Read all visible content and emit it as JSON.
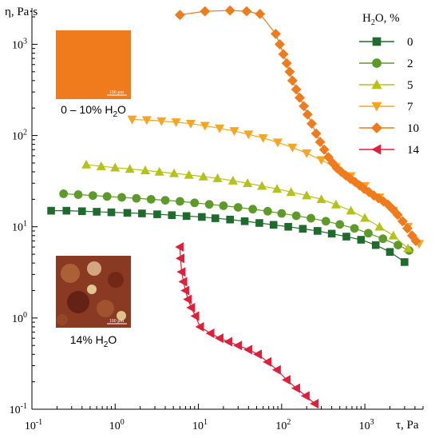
{
  "chart_data": {
    "type": "scatter",
    "x_scale": "log",
    "y_scale": "log",
    "xlim": [
      0.1,
      5000
    ],
    "ylim": [
      0.1,
      2500
    ],
    "x_ticks": [
      {
        "value": 0.1,
        "base": "10",
        "exp": "-1"
      },
      {
        "value": 1,
        "base": "10",
        "exp": "0"
      },
      {
        "value": 10,
        "base": "10",
        "exp": "1"
      },
      {
        "value": 100,
        "base": "10",
        "exp": "2"
      },
      {
        "value": 1000,
        "base": "10",
        "exp": "3"
      }
    ],
    "y_ticks": [
      {
        "value": 0.1,
        "base": "10",
        "exp": "-1"
      },
      {
        "value": 1,
        "base": "10",
        "exp": "0"
      },
      {
        "value": 10,
        "base": "10",
        "exp": "1"
      },
      {
        "value": 100,
        "base": "10",
        "exp": "2"
      },
      {
        "value": 1000,
        "base": "10",
        "exp": "3"
      }
    ],
    "xlabel": "τ, Pa",
    "ylabel": "η, Pa·s",
    "legend_title": "H2O, %",
    "legend_placement": "top-right",
    "grid": false,
    "series": [
      {
        "name": "0",
        "marker": "square",
        "color": "#1f6b2e",
        "x": [
          0.17,
          0.26,
          0.4,
          0.6,
          0.9,
          1.4,
          2.1,
          3.2,
          4.8,
          7.2,
          11,
          16,
          24,
          36,
          54,
          80,
          120,
          180,
          270,
          400,
          600,
          900,
          1350,
          2000,
          3000
        ],
        "y": [
          15.0,
          15.0,
          14.8,
          14.6,
          14.4,
          14.2,
          14.0,
          13.7,
          13.4,
          13.1,
          12.8,
          12.4,
          12.0,
          11.5,
          11.0,
          10.5,
          10.0,
          9.5,
          9.0,
          8.4,
          7.8,
          7.2,
          6.3,
          5.3,
          4.1
        ]
      },
      {
        "name": "2",
        "marker": "circle",
        "color": "#5e9a2a",
        "x": [
          0.24,
          0.36,
          0.54,
          0.8,
          1.2,
          1.8,
          2.7,
          4.0,
          6.0,
          9.0,
          13.5,
          20,
          30,
          45,
          68,
          100,
          150,
          225,
          340,
          500,
          750,
          1100,
          1650,
          2500,
          3400
        ],
        "y": [
          23,
          22.5,
          22,
          21.5,
          21,
          20.5,
          20,
          19.5,
          19,
          18.3,
          17.6,
          17,
          16.3,
          15.6,
          14.8,
          14.0,
          13.2,
          12.4,
          11.5,
          10.6,
          9.6,
          8.5,
          7.4,
          6.3,
          5.5
        ]
      },
      {
        "name": "5",
        "marker": "triangle-up",
        "color": "#b5c21a",
        "x": [
          0.45,
          0.68,
          1.0,
          1.5,
          2.3,
          3.4,
          5.1,
          7.7,
          11.5,
          17,
          26,
          39,
          58,
          88,
          130,
          200,
          300,
          450,
          680,
          1000,
          1500,
          2200,
          3300
        ],
        "y": [
          48,
          46,
          44.5,
          43,
          41.5,
          40,
          38.5,
          37,
          35.5,
          34,
          32,
          30,
          28,
          26,
          24,
          22,
          20,
          17.5,
          15,
          12.5,
          10,
          8,
          5.8
        ]
      },
      {
        "name": "7",
        "marker": "triangle-down",
        "color": "#f5a623",
        "x": [
          1.6,
          2.4,
          3.6,
          5.4,
          8.1,
          12,
          18,
          27,
          40,
          60,
          90,
          135,
          200,
          300,
          450,
          680,
          1000,
          1500,
          2200,
          3300,
          4500
        ],
        "y": [
          150,
          148,
          144,
          140,
          135,
          128,
          120,
          112,
          103,
          94,
          84,
          74,
          64,
          54,
          45,
          36,
          28,
          21,
          15,
          10,
          6.5
        ]
      },
      {
        "name": "10",
        "marker": "diamond",
        "color": "#f07b1c",
        "x": [
          6,
          12,
          24,
          38,
          55,
          85,
          95,
          105,
          115,
          125,
          135,
          150,
          165,
          185,
          205,
          230,
          260,
          290,
          325,
          365,
          410,
          460,
          520,
          590,
          670,
          760,
          860,
          980,
          1120,
          1280,
          1460,
          1670,
          1900,
          2170,
          2480,
          2840,
          3240,
          3700,
          4100
        ],
        "y": [
          2100,
          2300,
          2350,
          2300,
          2150,
          1300,
          1000,
          780,
          620,
          500,
          400,
          320,
          260,
          210,
          170,
          135,
          105,
          85,
          70,
          58,
          50,
          44,
          40,
          36.5,
          33.5,
          31,
          28.5,
          26,
          24,
          22,
          20.5,
          19,
          17.5,
          15.5,
          13.5,
          11.5,
          9.6,
          8.0,
          7.0
        ]
      },
      {
        "name": "14",
        "marker": "triangle-left",
        "color": "#e21f3a",
        "x": [
          6,
          6.1,
          6.3,
          6.6,
          7,
          7.5,
          8.2,
          9.2,
          10.5,
          14,
          18,
          23,
          30,
          40,
          52,
          68,
          88,
          115,
          150,
          195,
          250
        ],
        "y": [
          6.0,
          4.5,
          3.2,
          2.5,
          2.0,
          1.6,
          1.3,
          1.05,
          0.8,
          0.68,
          0.6,
          0.55,
          0.5,
          0.45,
          0.4,
          0.33,
          0.27,
          0.21,
          0.17,
          0.14,
          0.115
        ]
      }
    ]
  },
  "insets": [
    {
      "id": "inset-top",
      "label_pre": "0 – 10% H",
      "label_sub": "2",
      "label_post": "O",
      "scale_bar": "100 μm",
      "fill": "#f07b1c"
    },
    {
      "id": "inset-bottom",
      "label_pre": "14% H",
      "label_sub": "2",
      "label_post": "O",
      "scale_bar": "100 μm",
      "fill": "#8a3a22"
    }
  ]
}
